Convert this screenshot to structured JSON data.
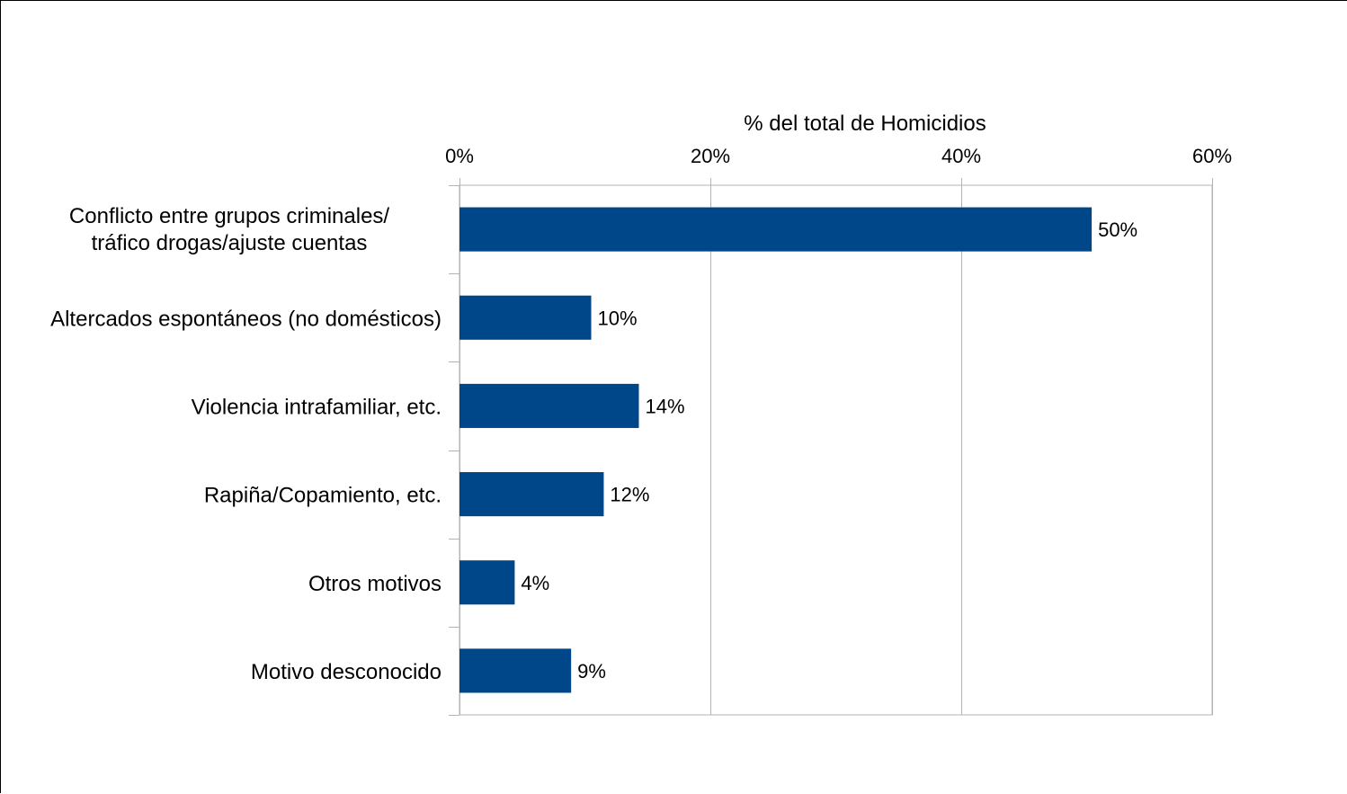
{
  "chart_data": {
    "type": "bar",
    "orientation": "horizontal",
    "title": "",
    "xlabel": "% del total de Homicidios",
    "ylabel": "",
    "xlim": [
      0,
      0.6
    ],
    "x_ticks": [
      "0%",
      "20%",
      "40%",
      "60%"
    ],
    "x_tick_values": [
      0,
      0.2,
      0.4,
      0.6
    ],
    "x_axis_position": "top",
    "grid": true,
    "legend": "none",
    "bar_color": "#00478a",
    "categories": [
      [
        "Conflicto entre grupos criminales/",
        "tráfico drogas/ajuste cuentas"
      ],
      [
        "Altercados espontáneos (no domésticos)"
      ],
      [
        "Violencia intrafamiliar, etc."
      ],
      [
        "Rapiña/Copamiento, etc."
      ],
      [
        "Otros motivos"
      ],
      [
        "Motivo desconocido"
      ]
    ],
    "values": [
      0.504,
      0.105,
      0.143,
      0.115,
      0.044,
      0.089
    ],
    "data_labels": [
      "50%",
      "10%",
      "14%",
      "12%",
      "4%",
      "9%"
    ]
  }
}
